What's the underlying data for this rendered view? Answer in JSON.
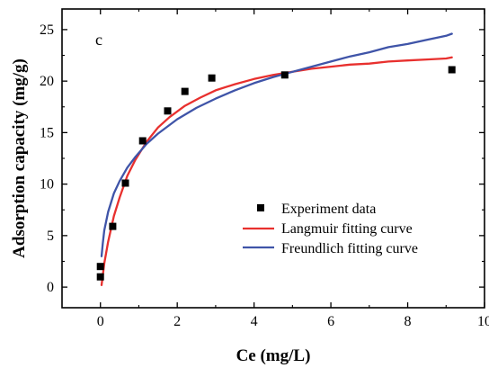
{
  "chart_data": {
    "type": "scatter",
    "panel_label": "c",
    "xlabel": "Ce (mg/L)",
    "ylabel": "Adsorption capacity (mg/g)",
    "xlim": [
      -1,
      10
    ],
    "ylim": [
      -2,
      27
    ],
    "xticks": [
      0,
      2,
      4,
      6,
      8,
      10
    ],
    "yticks": [
      0,
      5,
      10,
      15,
      20,
      25
    ],
    "legend_position": "center-right",
    "series": [
      {
        "name": "Experiment data",
        "kind": "scatter",
        "color": "#000000",
        "x": [
          0.0,
          0.0,
          0.32,
          0.65,
          1.1,
          1.75,
          2.2,
          2.9,
          4.8,
          9.15
        ],
        "y": [
          1.0,
          2.0,
          5.9,
          10.1,
          14.2,
          17.1,
          19.0,
          20.3,
          20.6,
          21.1
        ]
      },
      {
        "name": "Langmuir fitting curve",
        "kind": "line",
        "color": "#e8302e",
        "x": [
          0.03,
          0.1,
          0.2,
          0.35,
          0.5,
          0.7,
          0.9,
          1.2,
          1.5,
          1.8,
          2.2,
          2.6,
          3.0,
          3.5,
          4.0,
          4.5,
          5.0,
          5.5,
          6.0,
          6.5,
          7.0,
          7.5,
          8.0,
          8.5,
          9.0,
          9.15
        ],
        "y": [
          0.2,
          2.3,
          4.4,
          6.9,
          8.7,
          10.8,
          12.3,
          14.1,
          15.5,
          16.5,
          17.6,
          18.4,
          19.1,
          19.7,
          20.2,
          20.6,
          20.9,
          21.2,
          21.4,
          21.6,
          21.7,
          21.9,
          22.0,
          22.1,
          22.2,
          22.3
        ]
      },
      {
        "name": "Freundlich fitting curve",
        "kind": "line",
        "color": "#3f54a8",
        "x": [
          0.03,
          0.06,
          0.1,
          0.2,
          0.35,
          0.5,
          0.7,
          0.9,
          1.2,
          1.5,
          2.0,
          2.5,
          3.0,
          3.5,
          4.0,
          4.5,
          5.0,
          5.5,
          6.0,
          6.5,
          7.0,
          7.5,
          8.0,
          8.5,
          9.0,
          9.15
        ],
        "y": [
          3.0,
          4.2,
          5.5,
          7.3,
          9.1,
          10.3,
          11.6,
          12.6,
          13.9,
          14.9,
          16.3,
          17.4,
          18.3,
          19.1,
          19.8,
          20.4,
          20.9,
          21.4,
          21.9,
          22.4,
          22.8,
          23.3,
          23.6,
          24.0,
          24.4,
          24.6
        ]
      }
    ]
  }
}
